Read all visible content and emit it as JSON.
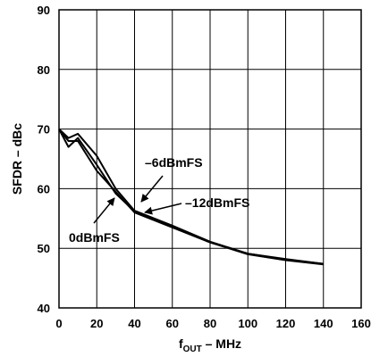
{
  "chart_data": {
    "type": "line",
    "title": "",
    "xlabel_main": "f",
    "xlabel_sub": "OUT",
    "xlabel_rest": " – MHz",
    "ylabel": "SFDR – dBc",
    "xlim": [
      0,
      160
    ],
    "ylim": [
      40,
      90
    ],
    "xticks": [
      0,
      20,
      40,
      60,
      80,
      100,
      120,
      140,
      160
    ],
    "yticks": [
      40,
      50,
      60,
      70,
      80,
      90
    ],
    "grid": true,
    "legend": "none",
    "series": [
      {
        "name": "0dBmFS",
        "x": [
          0,
          5,
          10,
          20,
          30,
          40,
          60,
          80,
          100,
          120,
          140
        ],
        "y": [
          70,
          68,
          68,
          63,
          59.5,
          56,
          53.5,
          51,
          49,
          48,
          47.3
        ]
      },
      {
        "name": "–6dBmFS",
        "x": [
          0,
          5,
          10,
          20,
          30,
          40,
          60,
          80,
          100,
          120,
          140
        ],
        "y": [
          70,
          67,
          68.5,
          64,
          59.2,
          56.2,
          53.6,
          51,
          49.1,
          48.1,
          47.4
        ]
      },
      {
        "name": "–12dBmFS",
        "x": [
          0,
          5,
          10,
          20,
          30,
          40,
          60,
          80,
          100,
          120,
          140
        ],
        "y": [
          70,
          68.5,
          69.2,
          65.5,
          60,
          56.3,
          53.8,
          51.1,
          49.1,
          48.2,
          47.4
        ]
      }
    ],
    "annotations": [
      {
        "text": "–6dBmFS",
        "series": "–6dBmFS",
        "anchor": "upper-middle"
      },
      {
        "text": "–12dBmFS",
        "series": "–12dBmFS",
        "anchor": "right-middle"
      },
      {
        "text": "0dBmFS",
        "series": "0dBmFS",
        "anchor": "lower-left"
      }
    ]
  }
}
